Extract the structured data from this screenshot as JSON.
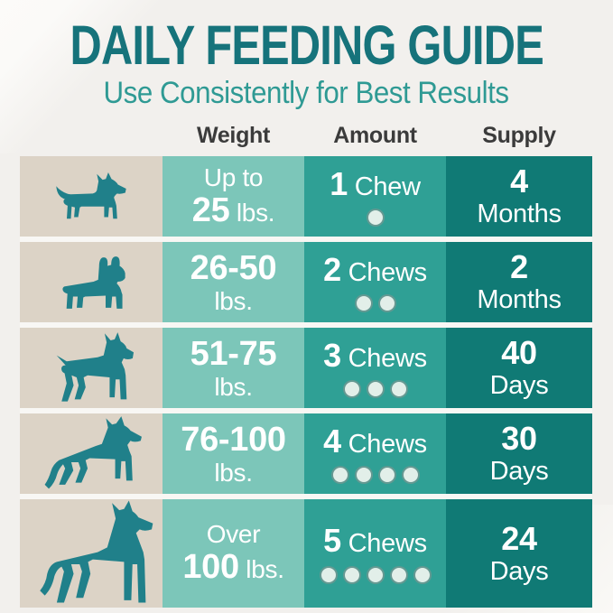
{
  "title": "DAILY FEEDING GUIDE",
  "subtitle": "Use Consistently for Best Results",
  "columns": [
    "Weight",
    "Amount",
    "Supply"
  ],
  "chart_data": {
    "type": "table",
    "title": "DAILY FEEDING GUIDE",
    "subtitle": "Use Consistently for Best Results",
    "columns": [
      "Weight",
      "Amount",
      "Supply"
    ],
    "rows": [
      {
        "dog": "chihuahua",
        "weight": "Up to 25 lbs.",
        "amount": "1 Chew",
        "chew_count": 1,
        "supply": "4 Months"
      },
      {
        "dog": "french-bulldog",
        "weight": "26-50 lbs.",
        "amount": "2 Chews",
        "chew_count": 2,
        "supply": "2 Months"
      },
      {
        "dog": "boxer",
        "weight": "51-75 lbs.",
        "amount": "3 Chews",
        "chew_count": 3,
        "supply": "40 Days"
      },
      {
        "dog": "german-shepherd",
        "weight": "76-100 lbs.",
        "amount": "4 Chews",
        "chew_count": 4,
        "supply": "30 Days"
      },
      {
        "dog": "great-dane",
        "weight": "Over 100 lbs.",
        "amount": "5 Chews",
        "chew_count": 5,
        "supply": "24 Days"
      }
    ]
  },
  "rows": [
    {
      "breed": "chihuahua",
      "icon": "chihuahua-dog-icon",
      "weight_lines": [
        [
          {
            "t": "Up to",
            "b": false
          }
        ],
        [
          {
            "t": "25",
            "b": true
          },
          {
            "t": " lbs.",
            "b": false
          }
        ]
      ],
      "amount": {
        "count": "1",
        "word": "Chew",
        "dots": 1
      },
      "supply": {
        "value": "4",
        "unit": "Months"
      }
    },
    {
      "breed": "french-bulldog",
      "icon": "french-bulldog-dog-icon",
      "weight_lines": [
        [
          {
            "t": "26-50",
            "b": true
          }
        ],
        [
          {
            "t": "lbs.",
            "b": false
          }
        ]
      ],
      "amount": {
        "count": "2",
        "word": "Chews",
        "dots": 2
      },
      "supply": {
        "value": "2",
        "unit": "Months"
      }
    },
    {
      "breed": "boxer",
      "icon": "boxer-dog-icon",
      "weight_lines": [
        [
          {
            "t": "51-75",
            "b": true
          }
        ],
        [
          {
            "t": "lbs.",
            "b": false
          }
        ]
      ],
      "amount": {
        "count": "3",
        "word": "Chews",
        "dots": 3
      },
      "supply": {
        "value": "40",
        "unit": "Days"
      }
    },
    {
      "breed": "german-shepherd",
      "icon": "german-shepherd-dog-icon",
      "weight_lines": [
        [
          {
            "t": "76-100",
            "b": true
          }
        ],
        [
          {
            "t": "lbs.",
            "b": false
          }
        ]
      ],
      "amount": {
        "count": "4",
        "word": "Chews",
        "dots": 4
      },
      "supply": {
        "value": "30",
        "unit": "Days"
      }
    },
    {
      "breed": "great-dane",
      "icon": "great-dane-dog-icon",
      "weight_lines": [
        [
          {
            "t": "Over",
            "b": false
          }
        ],
        [
          {
            "t": "100",
            "b": true
          },
          {
            "t": " lbs.",
            "b": false
          }
        ]
      ],
      "amount": {
        "count": "5",
        "word": "Chews",
        "dots": 5
      },
      "supply": {
        "value": "24",
        "unit": "Days"
      }
    }
  ],
  "colors": {
    "background": "#f2f0ed",
    "title": "#16737b",
    "subtitle": "#2f9a94",
    "header_text": "#3b3b3b",
    "dog_column": "#dcd3c6",
    "weight_column": "#7cc6b9",
    "amount_column": "#2fa095",
    "supply_column": "#107a75",
    "dog_silhouette": "#20808a",
    "chew_dot_fill": "#e2efe9",
    "cell_text": "#ffffff"
  }
}
